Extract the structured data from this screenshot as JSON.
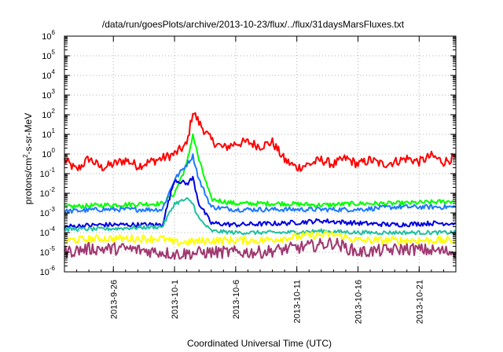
{
  "chart_data": {
    "type": "line",
    "title": "/data/run/goesPlots/archive/2013-10-23/flux/../flux/31daysMarsFluxes.txt",
    "xlabel": "Coordinated Universal Time (UTC)",
    "ylabel": {
      "base": "protons/cm",
      "sup": "2",
      "rest": "-s-sr-MeV"
    },
    "y_scale": "log",
    "ylim_exp": [
      -6,
      6
    ],
    "y_ticks": [
      {
        "base": "10",
        "exp": "6"
      },
      {
        "base": "10",
        "exp": "5"
      },
      {
        "base": "10",
        "exp": "4"
      },
      {
        "base": "10",
        "exp": "3"
      },
      {
        "base": "10",
        "exp": "2"
      },
      {
        "base": "10",
        "exp": "1"
      },
      {
        "base": "10",
        "exp": "0"
      },
      {
        "base": "10",
        "exp": "-1"
      },
      {
        "base": "10",
        "exp": "-2"
      },
      {
        "base": "10",
        "exp": "-3"
      },
      {
        "base": "10",
        "exp": "-4"
      },
      {
        "base": "10",
        "exp": "-5"
      },
      {
        "base": "10",
        "exp": "-6"
      }
    ],
    "xlim_days": [
      "2013-09-22",
      "2013-10-24"
    ],
    "x_ticks": [
      "2013-9-26",
      "2013-10-1",
      "2013-10-6",
      "2013-10-11",
      "2013-10-16",
      "2013-10-21"
    ],
    "grid": true,
    "legend": "none",
    "series": [
      {
        "color": "#ff0000",
        "values": [
          [
            "2013-09-22",
            0.5
          ],
          [
            "2013-09-23",
            0.15
          ],
          [
            "2013-09-24",
            0.6
          ],
          [
            "2013-09-25",
            0.2
          ],
          [
            "2013-09-26",
            0.3
          ],
          [
            "2013-09-27",
            0.5
          ],
          [
            "2013-09-28",
            0.25
          ],
          [
            "2013-09-29",
            0.4
          ],
          [
            "2013-09-30",
            0.6
          ],
          [
            "2013-10-01",
            1.0
          ],
          [
            "2013-10-02",
            3
          ],
          [
            "2013-10-02T12",
            150
          ],
          [
            "2013-10-03",
            40
          ],
          [
            "2013-10-04",
            5
          ],
          [
            "2013-10-05",
            2
          ],
          [
            "2013-10-06",
            3.5
          ],
          [
            "2013-10-07",
            4
          ],
          [
            "2013-10-08",
            2.5
          ],
          [
            "2013-10-09",
            4
          ],
          [
            "2013-10-10",
            0.5
          ],
          [
            "2013-10-11",
            0.2
          ],
          [
            "2013-10-12",
            0.3
          ],
          [
            "2013-10-13",
            0.5
          ],
          [
            "2013-10-14",
            0.3
          ],
          [
            "2013-10-15",
            0.6
          ],
          [
            "2013-10-16",
            0.3
          ],
          [
            "2013-10-17",
            0.5
          ],
          [
            "2013-10-18",
            0.3
          ],
          [
            "2013-10-19",
            0.4
          ],
          [
            "2013-10-20",
            0.6
          ],
          [
            "2013-10-21",
            0.4
          ],
          [
            "2013-10-22",
            0.8
          ],
          [
            "2013-10-23",
            0.4
          ],
          [
            "2013-10-24",
            0.7
          ]
        ]
      },
      {
        "color": "#00ff00",
        "values": [
          [
            "2013-09-22",
            0.002
          ],
          [
            "2013-09-25",
            0.0025
          ],
          [
            "2013-09-30",
            0.003
          ],
          [
            "2013-10-01",
            0.01
          ],
          [
            "2013-10-02",
            0.3
          ],
          [
            "2013-10-02T12",
            10
          ],
          [
            "2013-10-03",
            0.5
          ],
          [
            "2013-10-04",
            0.005
          ],
          [
            "2013-10-06",
            0.003
          ],
          [
            "2013-10-10",
            0.003
          ],
          [
            "2013-10-13",
            0.0025
          ],
          [
            "2013-10-16",
            0.003
          ],
          [
            "2013-10-19",
            0.003
          ],
          [
            "2013-10-22",
            0.0035
          ],
          [
            "2013-10-24",
            0.004
          ]
        ]
      },
      {
        "color": "#1e78ff",
        "values": [
          [
            "2013-09-22",
            0.0012
          ],
          [
            "2013-09-25",
            0.0015
          ],
          [
            "2013-09-30",
            0.0015
          ],
          [
            "2013-10-01",
            0.05
          ],
          [
            "2013-10-02",
            0.3
          ],
          [
            "2013-10-02T12",
            0.8
          ],
          [
            "2013-10-03",
            0.05
          ],
          [
            "2013-10-04",
            0.002
          ],
          [
            "2013-10-06",
            0.0015
          ],
          [
            "2013-10-10",
            0.0015
          ],
          [
            "2013-10-13",
            0.0015
          ],
          [
            "2013-10-16",
            0.0015
          ],
          [
            "2013-10-19",
            0.002
          ],
          [
            "2013-10-22",
            0.002
          ],
          [
            "2013-10-24",
            0.002
          ]
        ]
      },
      {
        "color": "#0000e0",
        "values": [
          [
            "2013-09-22",
            0.0002
          ],
          [
            "2013-09-25",
            0.00025
          ],
          [
            "2013-09-30",
            0.00025
          ],
          [
            "2013-10-01",
            0.05
          ],
          [
            "2013-10-02",
            0.03
          ],
          [
            "2013-10-02T12",
            0.06
          ],
          [
            "2013-10-03",
            0.003
          ],
          [
            "2013-10-04",
            0.0003
          ],
          [
            "2013-10-06",
            0.00025
          ],
          [
            "2013-10-10",
            0.0003
          ],
          [
            "2013-10-13",
            0.0004
          ],
          [
            "2013-10-16",
            0.0003
          ],
          [
            "2013-10-19",
            0.00025
          ],
          [
            "2013-10-22",
            0.0003
          ],
          [
            "2013-10-24",
            0.0003
          ]
        ]
      },
      {
        "color": "#20c0a0",
        "values": [
          [
            "2013-09-22",
            0.00015
          ],
          [
            "2013-09-25",
            0.00015
          ],
          [
            "2013-09-30",
            0.0002
          ],
          [
            "2013-10-01",
            0.003
          ],
          [
            "2013-10-02",
            0.005
          ],
          [
            "2013-10-02T12",
            0.003
          ],
          [
            "2013-10-03",
            0.0005
          ],
          [
            "2013-10-04",
            0.00012
          ],
          [
            "2013-10-06",
            0.0001
          ],
          [
            "2013-10-10",
            0.0001
          ],
          [
            "2013-10-13",
            0.00012
          ],
          [
            "2013-10-16",
            0.0001
          ],
          [
            "2013-10-19",
            0.0001
          ],
          [
            "2013-10-22",
            0.0001
          ],
          [
            "2013-10-24",
            0.0001
          ]
        ]
      },
      {
        "color": "#ffff00",
        "values": [
          [
            "2013-09-22",
            4e-05
          ],
          [
            "2013-09-25",
            5e-05
          ],
          [
            "2013-09-30",
            5e-05
          ],
          [
            "2013-10-01",
            3e-05
          ],
          [
            "2013-10-04",
            4e-05
          ],
          [
            "2013-10-08",
            4e-05
          ],
          [
            "2013-10-12",
            7e-05
          ],
          [
            "2013-10-14",
            8e-05
          ],
          [
            "2013-10-16",
            4e-05
          ],
          [
            "2013-10-20",
            4e-05
          ],
          [
            "2013-10-24",
            4e-05
          ]
        ]
      },
      {
        "color": "#a03870",
        "values": [
          [
            "2013-09-22",
            1e-05
          ],
          [
            "2013-09-24",
            1.5e-05
          ],
          [
            "2013-09-27",
            1.5e-05
          ],
          [
            "2013-09-30",
            1e-05
          ],
          [
            "2013-10-01",
            8e-06
          ],
          [
            "2013-10-04",
            1e-05
          ],
          [
            "2013-10-08",
            1e-05
          ],
          [
            "2013-10-12",
            2e-05
          ],
          [
            "2013-10-14",
            3e-05
          ],
          [
            "2013-10-16",
            1e-05
          ],
          [
            "2013-10-20",
            1.5e-05
          ],
          [
            "2013-10-24",
            1e-05
          ]
        ]
      }
    ]
  }
}
